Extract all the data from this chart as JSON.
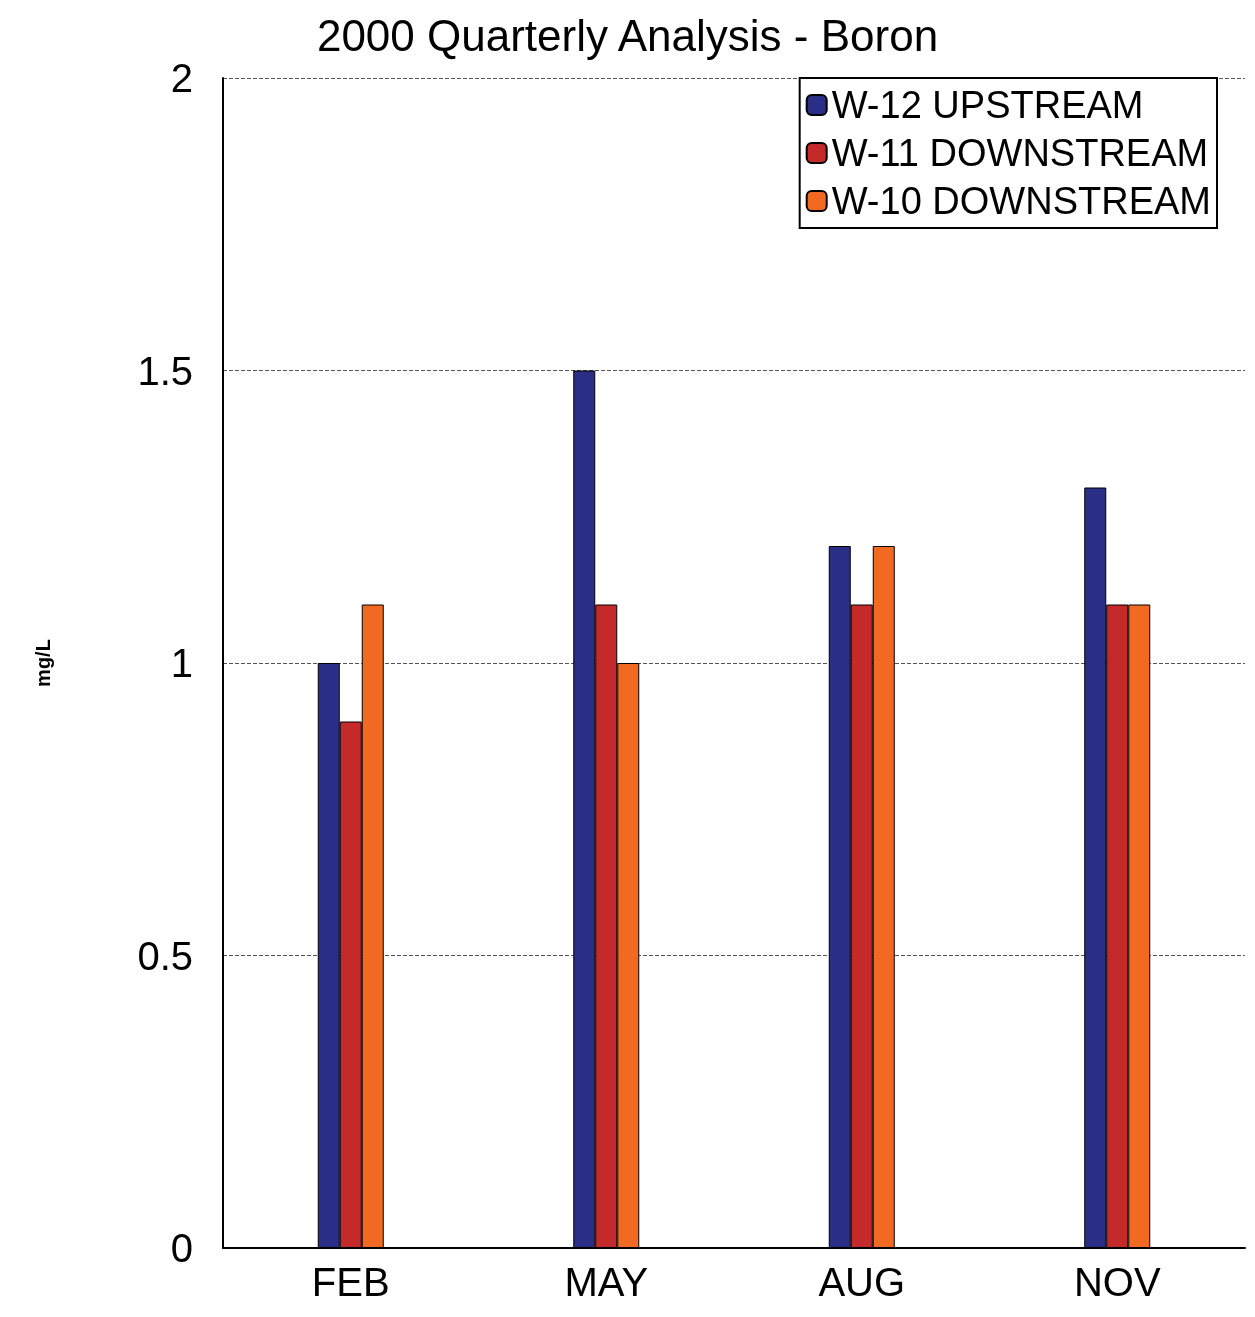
{
  "chart_data": {
    "type": "bar",
    "title": "2000 Quarterly Analysis - Boron",
    "ylabel": "mg/L",
    "categories": [
      "FEB",
      "MAY",
      "AUG",
      "NOV"
    ],
    "series": [
      {
        "name": "W-12 UPSTREAM",
        "color": "#2b2e86",
        "values": [
          1.0,
          1.5,
          1.2,
          1.3
        ]
      },
      {
        "name": "W-11 DOWNSTREAM",
        "color": "#c42a2a",
        "values": [
          0.9,
          1.1,
          1.1,
          1.1
        ]
      },
      {
        "name": "W-10 DOWNSTREAM",
        "color": "#f26a22",
        "values": [
          1.1,
          1.0,
          1.2,
          1.1
        ]
      }
    ],
    "ylim": [
      0,
      2
    ],
    "yticks": [
      0,
      0.5,
      1,
      1.5,
      2
    ],
    "grid": "y",
    "legend": "top right"
  }
}
